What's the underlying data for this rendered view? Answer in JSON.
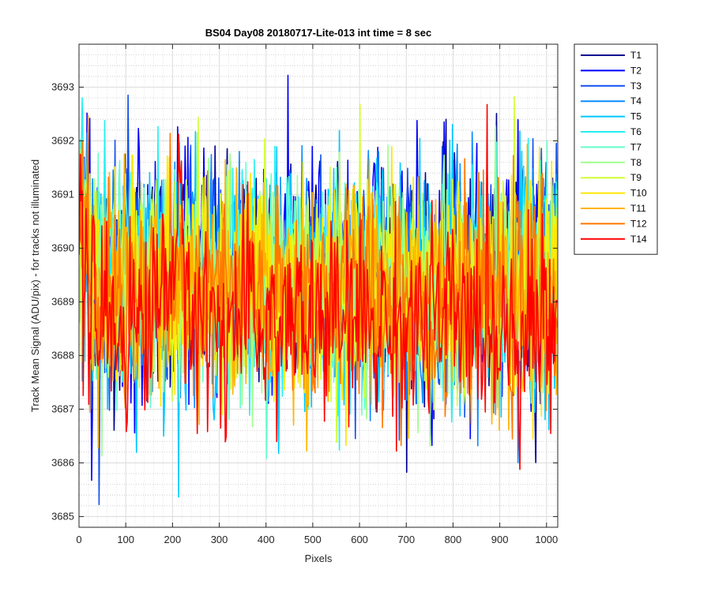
{
  "chart_data": {
    "type": "line",
    "title": "BS04 Day08 20180717-Lite-013 int time = 8 sec",
    "xlabel": "Pixels",
    "ylabel": "Track Mean Signal (ADU/pix) - for tracks not illuminated",
    "xlim": [
      0,
      1024
    ],
    "ylim": [
      3684.8,
      3693.8
    ],
    "xticks": [
      0,
      100,
      200,
      300,
      400,
      500,
      600,
      700,
      800,
      900,
      1000
    ],
    "yticks": [
      3685,
      3686,
      3687,
      3688,
      3689,
      3690,
      3691,
      3692,
      3693
    ],
    "grid": "major and minor",
    "legend_position": "outside-right",
    "series": [
      {
        "name": "T1",
        "color": "#00008f",
        "mean": 3689.4,
        "spread": 1.4
      },
      {
        "name": "T2",
        "color": "#0000ff",
        "mean": 3689.6,
        "spread": 1.5
      },
      {
        "name": "T3",
        "color": "#1450f0",
        "mean": 3689.5,
        "spread": 1.4
      },
      {
        "name": "T4",
        "color": "#0a8cff",
        "mean": 3689.4,
        "spread": 1.4
      },
      {
        "name": "T5",
        "color": "#00c8ff",
        "mean": 3689.4,
        "spread": 1.4
      },
      {
        "name": "T6",
        "color": "#28f0f0",
        "mean": 3689.4,
        "spread": 1.3
      },
      {
        "name": "T7",
        "color": "#64ffc8",
        "mean": 3689.4,
        "spread": 1.3
      },
      {
        "name": "T8",
        "color": "#a0ff8c",
        "mean": 3689.4,
        "spread": 1.3
      },
      {
        "name": "T9",
        "color": "#d2ff32",
        "mean": 3689.3,
        "spread": 1.3
      },
      {
        "name": "T10",
        "color": "#ffe600",
        "mean": 3689.3,
        "spread": 1.3
      },
      {
        "name": "T11",
        "color": "#ffb400",
        "mean": 3689.2,
        "spread": 1.3
      },
      {
        "name": "T12",
        "color": "#ff7800",
        "mean": 3689.0,
        "spread": 1.3
      },
      {
        "name": "T14",
        "color": "#ff0000",
        "mean": 3688.6,
        "spread": 1.2
      }
    ]
  }
}
